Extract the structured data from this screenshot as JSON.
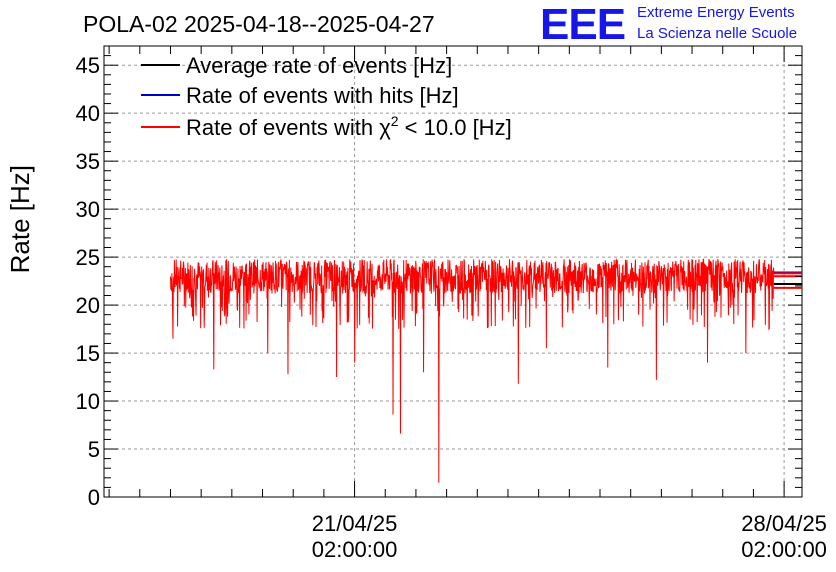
{
  "chart_data": {
    "type": "line",
    "title": "POLA-02 2025-04-18--2025-04-27",
    "xlabel": "",
    "ylabel": "Rate [Hz]",
    "ylim": [
      0,
      47
    ],
    "y_ticks": [
      "0",
      "5",
      "10",
      "15",
      "20",
      "25",
      "30",
      "35",
      "40",
      "45"
    ],
    "x_ticks": [
      {
        "date": "21/04/25",
        "time": "02:00:00"
      },
      {
        "date": "28/04/25",
        "time": "02:00:00"
      }
    ],
    "x_range": [
      "2025-04-17T00:00:00",
      "2025-04-28T09:00:00"
    ],
    "data_range": [
      "2025-04-18T02:00:00",
      "2025-04-27T22:00:00"
    ],
    "grid": true,
    "legend_position": "top-left",
    "series": [
      {
        "name": "Average rate of events [Hz]",
        "color": "#000000",
        "mean": 22.2
      },
      {
        "name": "Rate of events with hits [Hz]",
        "color": "#0000cc",
        "mean": 23.4
      },
      {
        "name": "Rate of events with χ² < 10.0 [Hz]",
        "legend_main": "Rate of events with χ",
        "legend_sup": "2",
        "legend_tail": " < 10.0 [Hz]",
        "color": "#ff0000",
        "mean": 23.0,
        "band_low": 21.0,
        "band_high": 24.6
      }
    ],
    "notable_dips": [
      {
        "time": "2025-04-18T03:00:00",
        "value": 16.5
      },
      {
        "time": "2025-04-18T19:00:00",
        "value": 13.3
      },
      {
        "time": "2025-04-19T16:00:00",
        "value": 15.0
      },
      {
        "time": "2025-04-20T00:00:00",
        "value": 12.8
      },
      {
        "time": "2025-04-20T19:00:00",
        "value": 12.5
      },
      {
        "time": "2025-04-21T02:00:00",
        "value": 14.0
      },
      {
        "time": "2025-04-21T17:00:00",
        "value": 8.6
      },
      {
        "time": "2025-04-21T20:00:00",
        "value": 6.6
      },
      {
        "time": "2025-04-22T05:00:00",
        "value": 13.0
      },
      {
        "time": "2025-04-22T11:00:00",
        "value": 1.5
      },
      {
        "time": "2025-04-23T18:00:00",
        "value": 11.8
      },
      {
        "time": "2025-04-24T05:00:00",
        "value": 15.5
      },
      {
        "time": "2025-04-25T05:00:00",
        "value": 13.5
      },
      {
        "time": "2025-04-26T00:00:00",
        "value": 12.2
      },
      {
        "time": "2025-04-26T20:00:00",
        "value": 14.0
      },
      {
        "time": "2025-04-27T11:00:00",
        "value": 15.0
      },
      {
        "time": "2025-04-27T20:00:00",
        "value": 17.5
      }
    ]
  },
  "logo": {
    "mark": "EEE",
    "line1": "Extreme Energy Events",
    "line2": "La Scienza nelle Scuole",
    "color": "#1616e8"
  }
}
